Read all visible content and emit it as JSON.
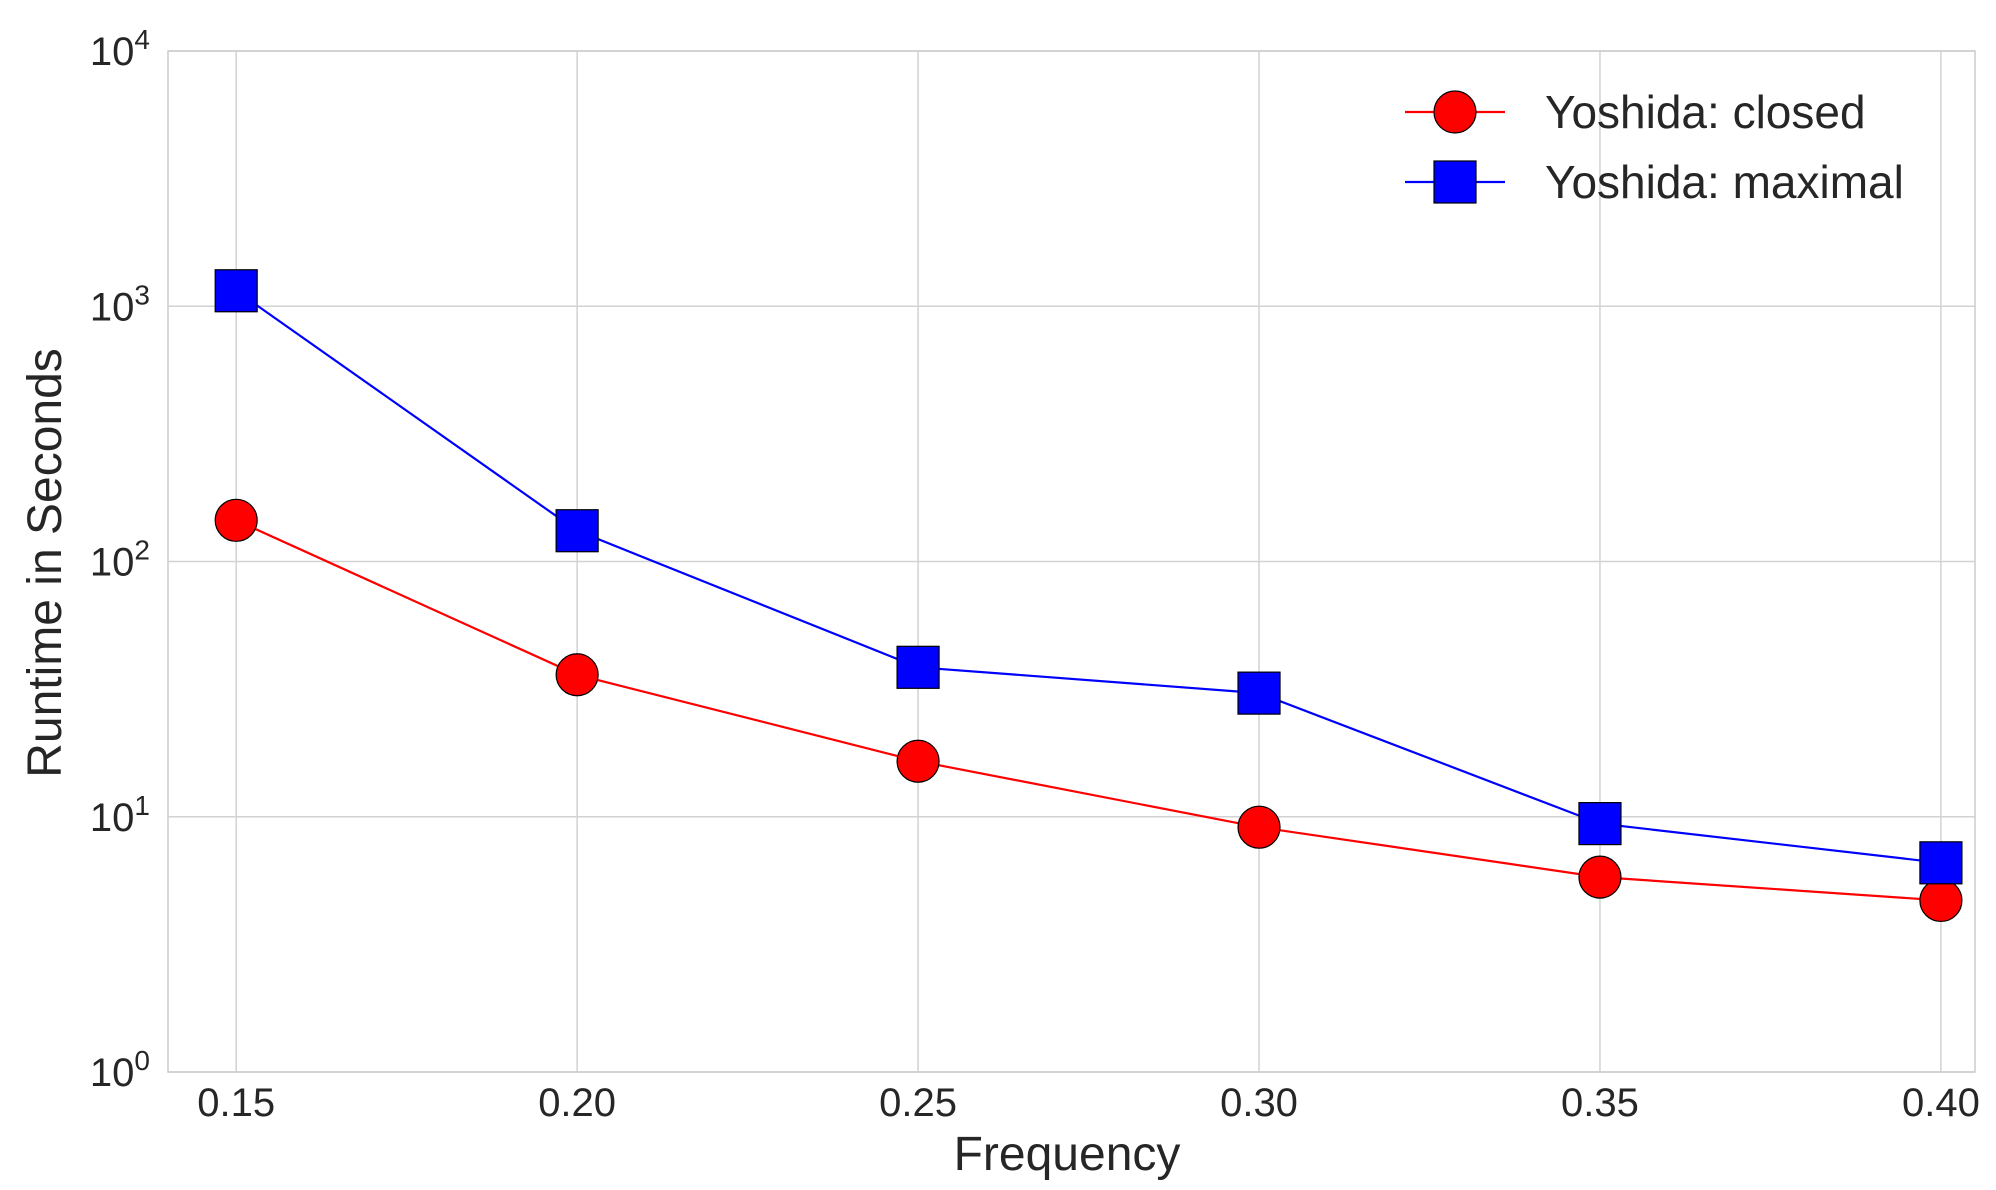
{
  "chart_data": {
    "type": "line",
    "xlabel": "Frequency",
    "ylabel": "Runtime in Seconds",
    "x": [
      0.15,
      0.2,
      0.25,
      0.3,
      0.35,
      0.4
    ],
    "x_tick_labels": [
      "0.15",
      "0.20",
      "0.25",
      "0.30",
      "0.35",
      "0.40"
    ],
    "xlim": [
      0.14,
      0.405
    ],
    "yscale": "log",
    "ylim": [
      1,
      10000
    ],
    "y_ticks": [
      {
        "value": 1,
        "base": "10",
        "exp": "0"
      },
      {
        "value": 10,
        "base": "10",
        "exp": "1"
      },
      {
        "value": 100,
        "base": "10",
        "exp": "2"
      },
      {
        "value": 1000,
        "base": "10",
        "exp": "3"
      },
      {
        "value": 10000,
        "base": "10",
        "exp": "4"
      }
    ],
    "grid": true,
    "legend_position": "top-right",
    "series": [
      {
        "name": "Yoshida: closed",
        "marker": "circle",
        "color": "#ff0000",
        "values": [
          145,
          36,
          16.5,
          9.1,
          5.8,
          4.7
        ]
      },
      {
        "name": "Yoshida: maximal",
        "marker": "square",
        "color": "#0000ff",
        "values": [
          1150,
          132,
          38.5,
          30.5,
          9.4,
          6.6
        ]
      }
    ]
  }
}
